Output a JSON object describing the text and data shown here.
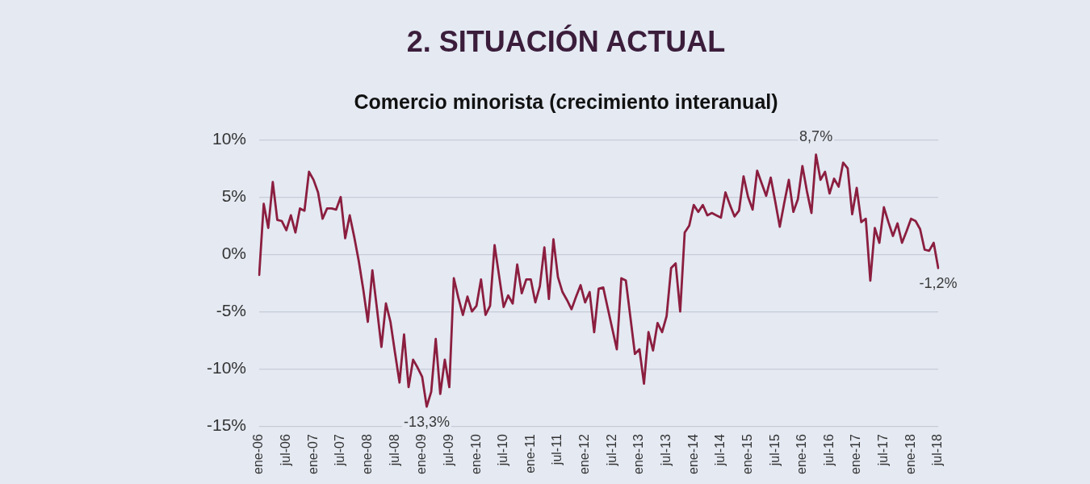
{
  "chart_data": {
    "type": "line",
    "title": "2. SITUACIÓN ACTUAL",
    "subtitle": "Comercio minorista (crecimiento interanual)",
    "categories": [
      "ene-06",
      null,
      null,
      null,
      null,
      null,
      "jul-06",
      null,
      null,
      null,
      null,
      null,
      "ene-07",
      null,
      null,
      null,
      null,
      null,
      "jul-07",
      null,
      null,
      null,
      null,
      null,
      "ene-08",
      null,
      null,
      null,
      null,
      null,
      "jul-08",
      null,
      null,
      null,
      null,
      null,
      "ene-09",
      null,
      null,
      null,
      null,
      null,
      "jul-09",
      null,
      null,
      null,
      null,
      null,
      "ene-10",
      null,
      null,
      null,
      null,
      null,
      "jul-10",
      null,
      null,
      null,
      null,
      null,
      "ene-11",
      null,
      null,
      null,
      null,
      null,
      "jul-11",
      null,
      null,
      null,
      null,
      null,
      "ene-12",
      null,
      null,
      null,
      null,
      null,
      "jul-12",
      null,
      null,
      null,
      null,
      null,
      "ene-13",
      null,
      null,
      null,
      null,
      null,
      "jul-13",
      null,
      null,
      null,
      null,
      null,
      "ene-14",
      null,
      null,
      null,
      null,
      null,
      "jul-14",
      null,
      null,
      null,
      null,
      null,
      "ene-15",
      null,
      null,
      null,
      null,
      null,
      "jul-15",
      null,
      null,
      null,
      null,
      null,
      "ene-16",
      null,
      null,
      null,
      null,
      null,
      "jul-16",
      null,
      null,
      null,
      null,
      null,
      "ene-17",
      null,
      null,
      null,
      null,
      null,
      "jul-17",
      null,
      null,
      null,
      null,
      null,
      "ene-18",
      null,
      null,
      null,
      null,
      null,
      "jul-18"
    ],
    "values": [
      -1.8,
      4.4,
      2.3,
      6.3,
      3.0,
      2.9,
      2.1,
      3.4,
      1.9,
      4.0,
      3.8,
      7.2,
      6.5,
      5.4,
      3.1,
      4.0,
      4.0,
      3.9,
      5.0,
      1.4,
      3.4,
      1.5,
      -0.6,
      -3.1,
      -5.9,
      -1.4,
      -4.7,
      -8.1,
      -4.3,
      -5.9,
      -8.6,
      -11.2,
      -7.0,
      -11.6,
      -9.2,
      -9.9,
      -10.7,
      -13.3,
      -12.0,
      -7.4,
      -12.2,
      -9.2,
      -11.6,
      -2.1,
      -3.8,
      -5.3,
      -3.7,
      -5.0,
      -4.5,
      -2.2,
      -5.3,
      -4.5,
      0.8,
      -1.9,
      -4.6,
      -3.6,
      -4.3,
      -0.9,
      -3.4,
      -2.2,
      -2.2,
      -4.2,
      -2.8,
      0.6,
      -3.9,
      1.3,
      -2.0,
      -3.3,
      -4.0,
      -4.8,
      -3.7,
      -2.7,
      -4.2,
      -3.3,
      -6.8,
      -3.0,
      -2.9,
      -4.7,
      -6.5,
      -8.3,
      -2.1,
      -2.3,
      -5.5,
      -8.7,
      -8.3,
      -11.3,
      -6.8,
      -8.4,
      -6.0,
      -6.8,
      -5.4,
      -1.2,
      -0.8,
      -5.0,
      1.9,
      2.5,
      4.3,
      3.7,
      4.3,
      3.4,
      3.6,
      3.4,
      3.2,
      5.4,
      4.3,
      3.3,
      3.8,
      6.8,
      5.0,
      3.9,
      7.3,
      6.2,
      5.1,
      6.7,
      4.6,
      2.4,
      4.5,
      6.5,
      3.7,
      4.8,
      7.7,
      5.5,
      3.6,
      8.7,
      6.5,
      7.2,
      5.3,
      6.6,
      5.9,
      8.0,
      7.5,
      3.5,
      5.8,
      2.8,
      3.1,
      -2.3,
      2.3,
      1.0,
      4.1,
      2.8,
      1.6,
      2.7,
      1.0,
      2.0,
      3.1,
      2.9,
      2.2,
      0.4,
      0.3,
      1.0,
      -1.2
    ],
    "value_labels": [
      null,
      null,
      null,
      null,
      null,
      null,
      null,
      null,
      null,
      null,
      null,
      null,
      null,
      null,
      null,
      null,
      null,
      null,
      null,
      null,
      null,
      null,
      null,
      null,
      null,
      null,
      null,
      null,
      null,
      null,
      null,
      null,
      null,
      null,
      null,
      null,
      null,
      "-13,3%",
      null,
      null,
      null,
      null,
      null,
      null,
      null,
      null,
      null,
      null,
      null,
      null,
      null,
      null,
      null,
      null,
      null,
      null,
      null,
      null,
      null,
      null,
      null,
      null,
      null,
      null,
      null,
      null,
      null,
      null,
      null,
      null,
      null,
      null,
      null,
      null,
      null,
      null,
      null,
      null,
      null,
      null,
      null,
      null,
      null,
      null,
      null,
      null,
      null,
      null,
      null,
      null,
      null,
      null,
      null,
      null,
      null,
      null,
      null,
      null,
      null,
      null,
      null,
      null,
      null,
      null,
      null,
      null,
      null,
      null,
      null,
      null,
      null,
      null,
      null,
      null,
      null,
      null,
      null,
      null,
      null,
      null,
      null,
      null,
      null,
      "8,7%",
      null,
      null,
      null,
      null,
      null,
      null,
      null,
      null,
      null,
      null,
      null,
      null,
      null,
      null,
      null,
      null,
      null,
      null,
      null,
      null,
      null,
      null,
      null,
      null,
      null,
      null,
      "-1,2%"
    ],
    "color": "#8b1e3f",
    "ylim": [
      -15,
      10
    ],
    "yticks": [
      {
        "value": -15,
        "label": "-15%"
      },
      {
        "value": -10,
        "label": "-10%"
      },
      {
        "value": -5,
        "label": "-5%"
      },
      {
        "value": 0,
        "label": "0%"
      },
      {
        "value": 5,
        "label": "5%"
      },
      {
        "value": 10,
        "label": "10%"
      }
    ],
    "grid": "y",
    "legend": false,
    "marker": "none",
    "line_style": "solid"
  }
}
